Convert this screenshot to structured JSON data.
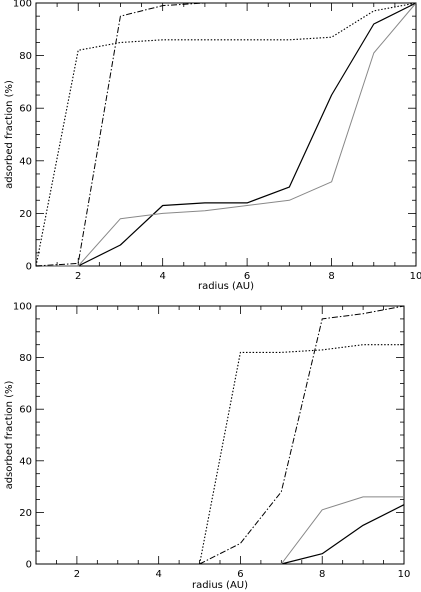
{
  "chart_data": [
    {
      "type": "line",
      "xlabel": "radius (AU)",
      "ylabel": "adsorbed fraction (%)",
      "xlim": [
        1,
        10
      ],
      "ylim": [
        0,
        100
      ],
      "xticks": [
        2,
        4,
        6,
        8,
        10
      ],
      "yticks": [
        0,
        20,
        40,
        60,
        80,
        100
      ],
      "grid": false,
      "series": [
        {
          "style": "solid",
          "color": "#000000",
          "x": [
            1,
            2,
            3,
            4,
            5,
            6,
            7,
            8,
            9,
            10
          ],
          "y": [
            0,
            0,
            8,
            23,
            24,
            24,
            30,
            65,
            92,
            100
          ]
        },
        {
          "style": "gray",
          "color": "#888888",
          "x": [
            1,
            2,
            3,
            4,
            5,
            6,
            7,
            8,
            9,
            10
          ],
          "y": [
            0,
            0,
            18,
            20,
            21,
            23,
            25,
            32,
            81,
            100
          ]
        },
        {
          "style": "dotted",
          "color": "#000000",
          "x": [
            1,
            2,
            3,
            4,
            5,
            6,
            7,
            8,
            9,
            10
          ],
          "y": [
            0,
            82,
            85,
            86,
            86,
            86,
            86,
            87,
            97,
            100
          ]
        },
        {
          "style": "dash-dot",
          "color": "#000000",
          "x": [
            1,
            2,
            3,
            4,
            5,
            6,
            7,
            8,
            9,
            10
          ],
          "y": [
            0,
            1,
            95,
            99,
            100,
            100,
            100,
            100,
            100,
            100
          ]
        }
      ]
    },
    {
      "type": "line",
      "xlabel": "radius (AU)",
      "ylabel": "adsorbed fraction (%)",
      "xlim": [
        1,
        10
      ],
      "ylim": [
        0,
        100
      ],
      "xticks": [
        2,
        4,
        6,
        8,
        10
      ],
      "yticks": [
        0,
        20,
        40,
        60,
        80,
        100
      ],
      "grid": false,
      "series": [
        {
          "style": "solid",
          "color": "#000000",
          "x": [
            7,
            8,
            9,
            10
          ],
          "y": [
            0,
            4,
            15,
            23
          ]
        },
        {
          "style": "gray",
          "color": "#888888",
          "x": [
            7,
            8,
            9,
            10
          ],
          "y": [
            0,
            21,
            26,
            26
          ]
        },
        {
          "style": "dotted",
          "color": "#000000",
          "x": [
            5,
            6,
            7,
            8,
            9,
            10
          ],
          "y": [
            0,
            82,
            82,
            83,
            85,
            85
          ]
        },
        {
          "style": "dash-dot",
          "color": "#000000",
          "x": [
            5,
            6,
            7,
            8,
            9,
            10
          ],
          "y": [
            0,
            8,
            28,
            95,
            97,
            100
          ]
        }
      ]
    }
  ]
}
